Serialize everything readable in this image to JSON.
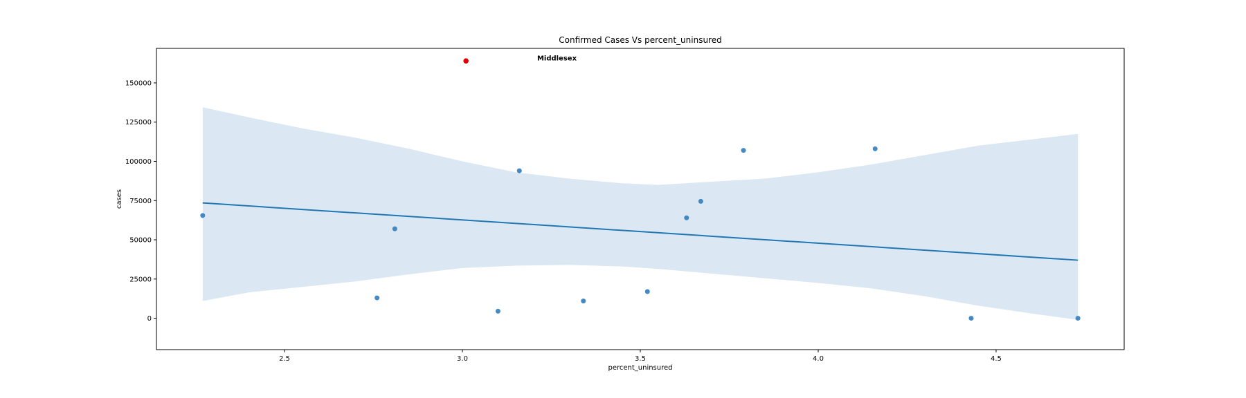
{
  "chart_data": {
    "type": "scatter",
    "title": "Confirmed Cases Vs percent_uninsured",
    "xlabel": "percent_uninsured",
    "ylabel": "cases",
    "xlim": [
      2.14,
      4.86
    ],
    "ylim": [
      -20000,
      172000
    ],
    "xticks": [
      2.5,
      3.0,
      3.5,
      4.0,
      4.5
    ],
    "xtick_labels": [
      "2.5",
      "3.0",
      "3.5",
      "4.0",
      "4.5"
    ],
    "yticks": [
      0,
      25000,
      50000,
      75000,
      100000,
      125000,
      150000
    ],
    "ytick_labels": [
      "0",
      "25000",
      "50000",
      "75000",
      "100000",
      "125000",
      "150000"
    ],
    "grid": false,
    "colors": {
      "points": "#3a83be",
      "highlight": "#e00000",
      "line": "#1f77b4",
      "band": "#dbe7f2"
    },
    "points": [
      {
        "x": 2.27,
        "y": 65500
      },
      {
        "x": 2.76,
        "y": 13000
      },
      {
        "x": 2.81,
        "y": 57000
      },
      {
        "x": 3.1,
        "y": 4500
      },
      {
        "x": 3.16,
        "y": 94000
      },
      {
        "x": 3.34,
        "y": 11000
      },
      {
        "x": 3.52,
        "y": 17000
      },
      {
        "x": 3.63,
        "y": 64000
      },
      {
        "x": 3.67,
        "y": 74500
      },
      {
        "x": 3.79,
        "y": 107000
      },
      {
        "x": 4.16,
        "y": 108000
      },
      {
        "x": 4.43,
        "y": 0
      },
      {
        "x": 4.73,
        "y": 0
      }
    ],
    "highlight_point": {
      "x": 3.01,
      "y": 164000
    },
    "annotation": {
      "text": "Middlesex",
      "x": 3.21,
      "y": 166000
    },
    "regression_line": [
      {
        "x": 2.27,
        "y": 73500
      },
      {
        "x": 4.73,
        "y": 37000
      }
    ],
    "confidence_band": {
      "x": [
        2.27,
        2.4,
        2.55,
        2.7,
        2.85,
        3.0,
        3.15,
        3.3,
        3.45,
        3.55,
        3.7,
        3.85,
        4.0,
        4.15,
        4.3,
        4.45,
        4.6,
        4.73
      ],
      "upper": [
        134500,
        128000,
        121000,
        115000,
        108000,
        100000,
        93000,
        89000,
        86000,
        85000,
        87000,
        89000,
        93000,
        98000,
        104000,
        110000,
        114000,
        117500
      ],
      "lower": [
        11000,
        16500,
        20000,
        23500,
        28000,
        32000,
        33500,
        34000,
        33000,
        31500,
        28500,
        25500,
        22500,
        19000,
        14000,
        8000,
        3000,
        -1000
      ]
    }
  }
}
